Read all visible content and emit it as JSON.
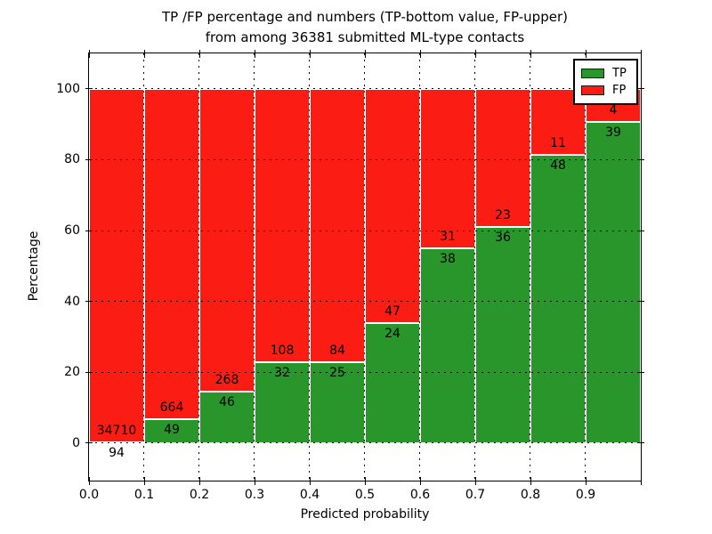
{
  "title": {
    "line1": "TP /FP percentage and numbers (TP-bottom value, FP-upper)",
    "line2": "from among 36381 submitted ML-type contacts"
  },
  "axes": {
    "xlabel": "Predicted probability",
    "ylabel": "Percentage"
  },
  "legend": {
    "entries": [
      {
        "label": "TP",
        "color": "#28962b"
      },
      {
        "label": "FP",
        "color": "#fb1d13"
      }
    ]
  },
  "chart_data": {
    "type": "bar",
    "stacked": true,
    "title": "TP /FP percentage and numbers (TP-bottom value, FP-upper) from among 36381 submitted ML-type contacts",
    "xlabel": "Predicted probability",
    "ylabel": "Percentage",
    "total_contacts": 36381,
    "bins": [
      [
        0.0,
        0.1
      ],
      [
        0.1,
        0.2
      ],
      [
        0.2,
        0.3
      ],
      [
        0.3,
        0.4
      ],
      [
        0.4,
        0.5
      ],
      [
        0.5,
        0.6
      ],
      [
        0.6,
        0.7
      ],
      [
        0.7,
        0.8
      ],
      [
        0.8,
        0.9
      ],
      [
        0.9,
        1.0
      ]
    ],
    "series": [
      {
        "name": "TP",
        "color": "#28962b",
        "counts": [
          94,
          49,
          46,
          32,
          25,
          24,
          38,
          36,
          48,
          39
        ]
      },
      {
        "name": "FP",
        "color": "#fb1d13",
        "counts": [
          34710,
          664,
          268,
          108,
          84,
          47,
          31,
          23,
          11,
          4
        ]
      }
    ],
    "bar_value_unit": "percent of bin total (stacks to 100)",
    "xticks": [
      "0.0",
      "0.1",
      "0.2",
      "0.3",
      "0.4",
      "0.5",
      "0.6",
      "0.7",
      "0.8",
      "0.9"
    ],
    "yticks": [
      0,
      20,
      40,
      60,
      80,
      100
    ],
    "xlim": [
      0.0,
      1.0
    ],
    "ylim": [
      -10.55,
      110
    ],
    "grid": true,
    "legend_position": "upper right"
  }
}
